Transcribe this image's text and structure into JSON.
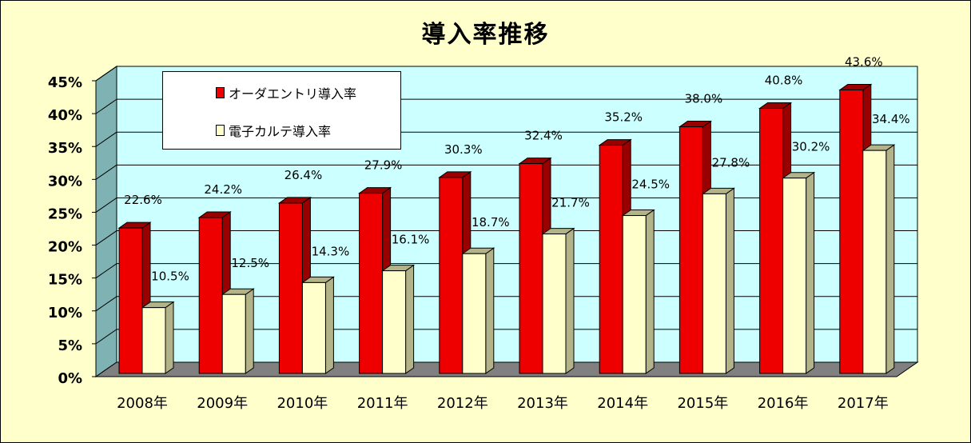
{
  "title": "導入率推移",
  "colors": {
    "order_entry": "#ee0000",
    "order_entry_side": "#990000",
    "emr": "#ffffcc",
    "emr_side": "#b3b38a",
    "plot_back": "#ccffff",
    "plot_wall": "#7fb3b3",
    "floor": "#808080"
  },
  "legend": {
    "order_entry": "オーダエントリ導入率",
    "emr": "電子カルテ導入率"
  },
  "chart_data": {
    "type": "bar",
    "title": "導入率推移",
    "categories": [
      "2008年",
      "2009年",
      "2010年",
      "2011年",
      "2012年",
      "2013年",
      "2014年",
      "2015年",
      "2016年",
      "2017年"
    ],
    "series": [
      {
        "name": "オーダエントリ導入率",
        "values": [
          22.6,
          24.2,
          26.4,
          27.9,
          30.3,
          32.4,
          35.2,
          38.0,
          40.8,
          43.6
        ]
      },
      {
        "name": "電子カルテ導入率",
        "values": [
          10.5,
          12.5,
          14.3,
          16.1,
          18.7,
          21.7,
          24.5,
          27.8,
          30.2,
          34.4
        ]
      }
    ],
    "data_labels": [
      [
        "22.6%",
        "24.2%",
        "26.4%",
        "27.9%",
        "30.3%",
        "32.4%",
        "35.2%",
        "38.0%",
        "40.8%",
        "43.6%"
      ],
      [
        "10.5%",
        "12.5%",
        "14.3%",
        "16.1%",
        "18.7%",
        "21.7%",
        "24.5%",
        "27.8%",
        "30.2%",
        "34.4%"
      ]
    ],
    "yticks": [
      "0%",
      "5%",
      "10%",
      "15%",
      "20%",
      "25%",
      "30%",
      "35%",
      "40%",
      "45%"
    ],
    "ylim": [
      0,
      45
    ],
    "grid": true,
    "legend_position": "top-left"
  }
}
